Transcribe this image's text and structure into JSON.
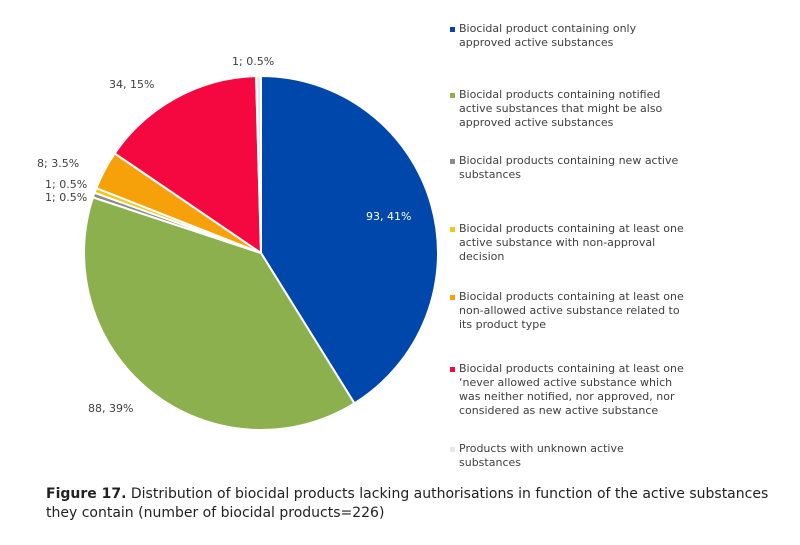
{
  "chart_data": {
    "type": "pie",
    "title": "",
    "slices": [
      {
        "label": "Biocidal product containing only approved active substances",
        "value": 93,
        "percent": "41%",
        "data_label": "93, 41%",
        "color": "#0047AB"
      },
      {
        "label": "Biocidal products containing notified active substances that might be also approved active substances",
        "value": 88,
        "percent": "39%",
        "data_label": "88, 39%",
        "color": "#8CB04E"
      },
      {
        "label": "Biocidal products containing new active substances",
        "value": 1,
        "percent": "0.5%",
        "data_label": "1; 0.5%",
        "color": "#8C8C8C"
      },
      {
        "label": "Biocidal products containing at least one active substance with non-approval decision",
        "value": 1,
        "percent": "0.5%",
        "data_label": "1; 0.5%",
        "color": "#F5C518"
      },
      {
        "label": "Biocidal products containing at least one non-allowed active substance related to its product type",
        "value": 8,
        "percent": "3.5%",
        "data_label": "8; 3.5%",
        "color": "#F7A10A"
      },
      {
        "label": "Biocidal products containing at least one ‘never allowed active substance which was neither notified, nor approved, nor considered as new active substance",
        "value": 34,
        "percent": "15%",
        "data_label": "34, 15%",
        "color": "#F5083F"
      },
      {
        "label": "Products with unknown active substances",
        "value": 1,
        "percent": "0.5%",
        "data_label": "1; 0.5%",
        "color": "#E8E8E8"
      }
    ],
    "legend_position": "right"
  },
  "legend_lines": [
    [
      "Biocidal product containing only",
      "approved active substances"
    ],
    [
      "Biocidal products containing notified",
      "active substances that might be also",
      "approved active substances"
    ],
    [
      "Biocidal products containing new active",
      "substances"
    ],
    [
      "Biocidal products containing at least one",
      "active substance with non-approval",
      "decision"
    ],
    [
      "Biocidal products containing at least one",
      "non-allowed active substance related to",
      "its product type"
    ],
    [
      "Biocidal products containing at least one",
      "‘never allowed active substance which",
      "was neither notified, nor approved, nor",
      "considered as new active substance"
    ],
    [
      "Products with unknown active",
      "substances"
    ]
  ],
  "caption": {
    "figure_label": "Figure 17.",
    "text": " Distribution of biocidal products lacking authorisations in function of the active substances they contain (number of biocidal products=226)"
  }
}
